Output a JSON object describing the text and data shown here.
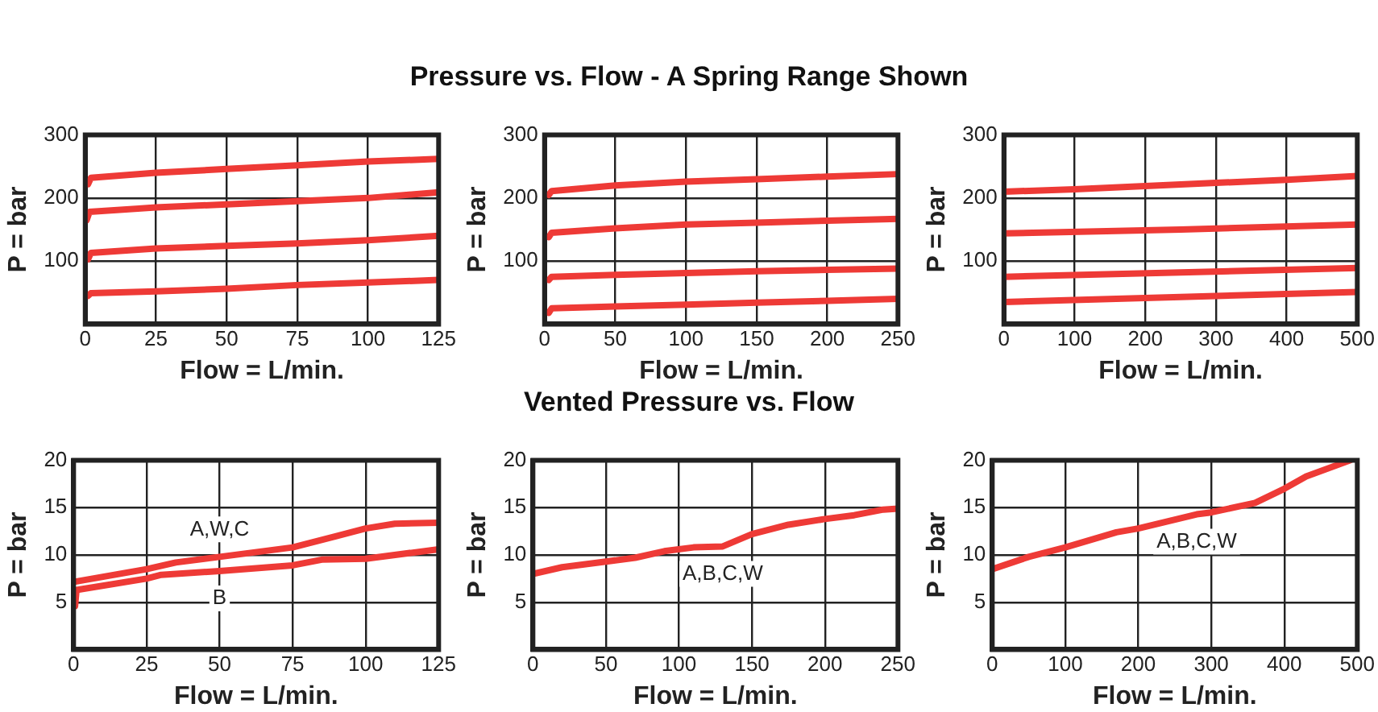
{
  "chart_data": [
    {
      "type": "line",
      "xlabel": "Flow = L/min.",
      "ylabel": "P = bar",
      "xlim": [
        0,
        125
      ],
      "xticks": [
        0,
        25,
        50,
        75,
        100,
        125
      ],
      "ylim": [
        0,
        300
      ],
      "yticks": [
        100,
        200,
        300
      ],
      "grid": true,
      "series": [
        {
          "color": "#ee3a36",
          "x": [
            1,
            2,
            25,
            50,
            75,
            100,
            125
          ],
          "values": [
            222,
            232,
            240,
            246,
            252,
            258,
            262
          ]
        },
        {
          "color": "#ee3a36",
          "x": [
            0.5,
            1.5,
            25,
            50,
            75,
            100,
            125
          ],
          "values": [
            165,
            178,
            185,
            190,
            195,
            200,
            209
          ]
        },
        {
          "color": "#ee3a36",
          "x": [
            1,
            2,
            25,
            50,
            75,
            100,
            125
          ],
          "values": [
            103,
            113,
            120,
            124,
            128,
            133,
            140
          ]
        },
        {
          "color": "#ee3a36",
          "x": [
            1,
            2,
            25,
            50,
            75,
            100,
            125
          ],
          "values": [
            45,
            49,
            52,
            56,
            62,
            66,
            70
          ]
        }
      ]
    },
    {
      "type": "line",
      "title": "Pressure vs. Flow - A Spring Range Shown",
      "xlabel": "Flow = L/min.",
      "ylabel": "P = bar",
      "xlim": [
        0,
        250
      ],
      "xticks": [
        0,
        50,
        100,
        150,
        200,
        250
      ],
      "ylim": [
        0,
        300
      ],
      "yticks": [
        100,
        200,
        300
      ],
      "grid": true,
      "series": [
        {
          "color": "#ee3a36",
          "x": [
            3,
            5,
            50,
            100,
            150,
            200,
            250
          ],
          "values": [
            205,
            211,
            220,
            226,
            230,
            234,
            238
          ]
        },
        {
          "color": "#ee3a36",
          "x": [
            3,
            5,
            50,
            100,
            150,
            200,
            250
          ],
          "values": [
            138,
            145,
            152,
            158,
            161,
            164,
            167
          ]
        },
        {
          "color": "#ee3a36",
          "x": [
            3,
            5,
            50,
            100,
            150,
            200,
            250
          ],
          "values": [
            70,
            75,
            78,
            81,
            84,
            86,
            88
          ]
        },
        {
          "color": "#ee3a36",
          "x": [
            3,
            5,
            50,
            100,
            150,
            200,
            250
          ],
          "values": [
            18,
            25,
            28,
            31,
            34,
            37,
            40
          ]
        }
      ]
    },
    {
      "type": "line",
      "xlabel": "Flow = L/min.",
      "ylabel": "P = bar",
      "xlim": [
        0,
        500
      ],
      "xticks": [
        0,
        100,
        200,
        300,
        400,
        500
      ],
      "ylim": [
        0,
        300
      ],
      "yticks": [
        100,
        200,
        300
      ],
      "grid": true,
      "series": [
        {
          "color": "#ee3a36",
          "x": [
            0,
            100,
            200,
            300,
            400,
            500
          ],
          "values": [
            210,
            214,
            219,
            224,
            229,
            235
          ]
        },
        {
          "color": "#ee3a36",
          "x": [
            0,
            250,
            500
          ],
          "values": [
            144,
            150,
            158
          ]
        },
        {
          "color": "#ee3a36",
          "x": [
            0,
            250,
            500
          ],
          "values": [
            75,
            82,
            89
          ]
        },
        {
          "color": "#ee3a36",
          "x": [
            0,
            250,
            500
          ],
          "values": [
            35,
            43,
            51
          ]
        }
      ]
    },
    {
      "type": "line",
      "xlabel": "Flow = L/min.",
      "ylabel": "P = bar",
      "xlim": [
        0,
        125
      ],
      "xticks": [
        0,
        25,
        50,
        75,
        100,
        125
      ],
      "ylim": [
        0,
        20
      ],
      "yticks": [
        5,
        10,
        15,
        20
      ],
      "grid": true,
      "series": [
        {
          "name": "A,W,C",
          "color": "#ee3a36",
          "x": [
            1,
            25,
            35,
            50,
            75,
            90,
            100,
            110,
            125
          ],
          "values": [
            7.2,
            8.5,
            9.2,
            9.8,
            10.8,
            12,
            12.8,
            13.3,
            13.4
          ]
        },
        {
          "name": "B",
          "color": "#ee3a36",
          "x": [
            0.5,
            1,
            25,
            30,
            50,
            75,
            85,
            100,
            125
          ],
          "values": [
            4.6,
            6.3,
            7.5,
            7.9,
            8.3,
            8.9,
            9.5,
            9.6,
            10.6
          ]
        }
      ]
    },
    {
      "type": "line",
      "title": "Vented Pressure vs. Flow",
      "xlabel": "Flow = L/min.",
      "ylabel": "P = bar",
      "xlim": [
        0,
        250
      ],
      "xticks": [
        0,
        50,
        100,
        150,
        200,
        250
      ],
      "ylim": [
        0,
        20
      ],
      "yticks": [
        5,
        10,
        15,
        20
      ],
      "grid": true,
      "series": [
        {
          "name": "A,B,C,W",
          "color": "#ee3a36",
          "x": [
            0,
            20,
            50,
            70,
            90,
            110,
            130,
            150,
            175,
            200,
            220,
            240,
            250
          ],
          "values": [
            8,
            8.7,
            9.3,
            9.7,
            10.4,
            10.8,
            10.9,
            12.2,
            13.2,
            13.8,
            14.2,
            14.8,
            14.9
          ]
        }
      ]
    },
    {
      "type": "line",
      "xlabel": "Flow = L/min.",
      "ylabel": "P = bar",
      "xlim": [
        0,
        500
      ],
      "xticks": [
        0,
        100,
        200,
        300,
        400,
        500
      ],
      "ylim": [
        0,
        20
      ],
      "yticks": [
        5,
        10,
        15,
        20
      ],
      "grid": true,
      "series": [
        {
          "name": "A,B,C,W",
          "color": "#ee3a36",
          "x": [
            0,
            50,
            100,
            170,
            200,
            280,
            300,
            360,
            400,
            430,
            490
          ],
          "values": [
            8.5,
            9.8,
            10.8,
            12.4,
            12.8,
            14.3,
            14.5,
            15.5,
            17,
            18.3,
            20
          ]
        }
      ]
    }
  ]
}
